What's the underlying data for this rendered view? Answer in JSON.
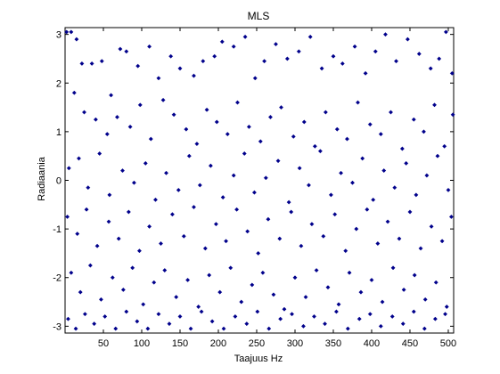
{
  "chart_data": {
    "type": "scatter",
    "title": "MLS",
    "xlabel": "Taajuus Hz",
    "ylabel": "Radiaania",
    "xlim": [
      0,
      507
    ],
    "ylim": [
      -3.14,
      3.14
    ],
    "xticks": [
      50,
      100,
      150,
      200,
      250,
      300,
      350,
      400,
      450,
      500
    ],
    "xtick_labels": [
      "50",
      "100",
      "150",
      "200",
      "250",
      "300",
      "350",
      "400",
      "450",
      "500"
    ],
    "yticks": [
      -3,
      -2,
      -1,
      0,
      1,
      2,
      3
    ],
    "ytick_labels": [
      "-3",
      "-2",
      "-1",
      "0",
      "1",
      "2",
      "3"
    ],
    "grid": false,
    "legend": "none",
    "marker": "filled-diamond",
    "series": [
      {
        "color": "#00008B",
        "points": [
          [
            2,
            3.05
          ],
          [
            8,
            3.05
          ],
          [
            15,
            2.9
          ],
          [
            22,
            2.4
          ],
          [
            35,
            2.4
          ],
          [
            48,
            2.45
          ],
          [
            60,
            1.75
          ],
          [
            72,
            2.7
          ],
          [
            80,
            2.65
          ],
          [
            95,
            2.35
          ],
          [
            110,
            2.75
          ],
          [
            122,
            2.1
          ],
          [
            138,
            2.55
          ],
          [
            150,
            2.3
          ],
          [
            168,
            2.15
          ],
          [
            180,
            2.45
          ],
          [
            195,
            2.55
          ],
          [
            205,
            2.85
          ],
          [
            220,
            2.75
          ],
          [
            235,
            2.95
          ],
          [
            248,
            2.1
          ],
          [
            260,
            2.45
          ],
          [
            275,
            2.8
          ],
          [
            290,
            2.5
          ],
          [
            305,
            2.65
          ],
          [
            320,
            2.95
          ],
          [
            335,
            2.3
          ],
          [
            350,
            2.55
          ],
          [
            362,
            2.4
          ],
          [
            378,
            2.75
          ],
          [
            392,
            2.2
          ],
          [
            405,
            2.65
          ],
          [
            418,
            3.0
          ],
          [
            432,
            2.45
          ],
          [
            447,
            2.9
          ],
          [
            462,
            2.6
          ],
          [
            477,
            2.3
          ],
          [
            488,
            2.5
          ],
          [
            497,
            3.05
          ],
          [
            505,
            2.2
          ],
          [
            12,
            1.8
          ],
          [
            25,
            1.4
          ],
          [
            40,
            1.25
          ],
          [
            55,
            0.95
          ],
          [
            68,
            1.3
          ],
          [
            85,
            1.1
          ],
          [
            98,
            1.55
          ],
          [
            112,
            0.85
          ],
          [
            128,
            1.65
          ],
          [
            142,
            1.35
          ],
          [
            158,
            1.05
          ],
          [
            172,
            0.75
          ],
          [
            185,
            1.45
          ],
          [
            198,
            1.2
          ],
          [
            212,
            0.95
          ],
          [
            225,
            1.6
          ],
          [
            240,
            1.1
          ],
          [
            255,
            0.8
          ],
          [
            268,
            1.3
          ],
          [
            282,
            1.5
          ],
          [
            298,
            0.9
          ],
          [
            312,
            1.2
          ],
          [
            326,
            0.7
          ],
          [
            340,
            1.4
          ],
          [
            355,
            1.05
          ],
          [
            368,
            0.85
          ],
          [
            382,
            1.6
          ],
          [
            398,
            1.15
          ],
          [
            412,
            0.95
          ],
          [
            425,
            1.4
          ],
          [
            440,
            0.65
          ],
          [
            455,
            1.25
          ],
          [
            468,
            1.0
          ],
          [
            482,
            1.55
          ],
          [
            495,
            0.7
          ],
          [
            506,
            1.35
          ],
          [
            5,
            0.25
          ],
          [
            18,
            0.45
          ],
          [
            30,
            -0.15
          ],
          [
            45,
            0.55
          ],
          [
            58,
            -0.3
          ],
          [
            75,
            0.2
          ],
          [
            90,
            -0.05
          ],
          [
            105,
            0.35
          ],
          [
            118,
            -0.4
          ],
          [
            132,
            0.15
          ],
          [
            148,
            -0.2
          ],
          [
            162,
            0.5
          ],
          [
            176,
            -0.1
          ],
          [
            190,
            0.3
          ],
          [
            206,
            -0.35
          ],
          [
            220,
            0.1
          ],
          [
            234,
            0.55
          ],
          [
            247,
            -0.25
          ],
          [
            262,
            0.05
          ],
          [
            278,
            0.4
          ],
          [
            292,
            -0.45
          ],
          [
            306,
            0.25
          ],
          [
            318,
            -0.1
          ],
          [
            333,
            0.6
          ],
          [
            347,
            -0.3
          ],
          [
            360,
            0.15
          ],
          [
            375,
            -0.05
          ],
          [
            388,
            0.45
          ],
          [
            402,
            -0.4
          ],
          [
            416,
            0.2
          ],
          [
            430,
            -0.15
          ],
          [
            445,
            0.35
          ],
          [
            458,
            -0.3
          ],
          [
            472,
            0.1
          ],
          [
            486,
            0.5
          ],
          [
            500,
            -0.2
          ],
          [
            3,
            -0.75
          ],
          [
            16,
            -1.1
          ],
          [
            28,
            -0.6
          ],
          [
            42,
            -1.35
          ],
          [
            57,
            -0.85
          ],
          [
            70,
            -1.2
          ],
          [
            83,
            -0.65
          ],
          [
            97,
            -1.45
          ],
          [
            110,
            -0.95
          ],
          [
            125,
            -1.3
          ],
          [
            140,
            -0.7
          ],
          [
            155,
            -1.15
          ],
          [
            168,
            -0.55
          ],
          [
            183,
            -1.4
          ],
          [
            197,
            -0.9
          ],
          [
            210,
            -1.25
          ],
          [
            224,
            -0.6
          ],
          [
            238,
            -1.05
          ],
          [
            252,
            -1.5
          ],
          [
            265,
            -0.8
          ],
          [
            280,
            -1.2
          ],
          [
            295,
            -0.65
          ],
          [
            308,
            -1.35
          ],
          [
            322,
            -0.9
          ],
          [
            337,
            -1.15
          ],
          [
            352,
            -0.7
          ],
          [
            366,
            -1.45
          ],
          [
            380,
            -1.0
          ],
          [
            394,
            -0.6
          ],
          [
            408,
            -1.3
          ],
          [
            421,
            -0.85
          ],
          [
            436,
            -1.2
          ],
          [
            450,
            -0.65
          ],
          [
            464,
            -1.4
          ],
          [
            478,
            -0.95
          ],
          [
            492,
            -1.25
          ],
          [
            504,
            -0.75
          ],
          [
            8,
            -1.9
          ],
          [
            20,
            -2.3
          ],
          [
            33,
            -1.75
          ],
          [
            47,
            -2.45
          ],
          [
            62,
            -2.0
          ],
          [
            76,
            -2.25
          ],
          [
            88,
            -1.8
          ],
          [
            102,
            -2.55
          ],
          [
            116,
            -2.1
          ],
          [
            130,
            -1.85
          ],
          [
            145,
            -2.4
          ],
          [
            160,
            -2.05
          ],
          [
            174,
            -2.6
          ],
          [
            188,
            -1.95
          ],
          [
            202,
            -2.3
          ],
          [
            216,
            -1.8
          ],
          [
            230,
            -2.5
          ],
          [
            244,
            -2.15
          ],
          [
            258,
            -1.9
          ],
          [
            272,
            -2.35
          ],
          [
            286,
            -2.65
          ],
          [
            300,
            -2.0
          ],
          [
            314,
            -2.4
          ],
          [
            328,
            -1.85
          ],
          [
            343,
            -2.2
          ],
          [
            357,
            -2.55
          ],
          [
            371,
            -1.9
          ],
          [
            386,
            -2.3
          ],
          [
            400,
            -2.05
          ],
          [
            414,
            -2.5
          ],
          [
            428,
            -1.8
          ],
          [
            442,
            -2.25
          ],
          [
            456,
            -1.95
          ],
          [
            470,
            -2.45
          ],
          [
            484,
            -2.1
          ],
          [
            498,
            -2.6
          ],
          [
            4,
            -2.85
          ],
          [
            14,
            -3.05
          ],
          [
            26,
            -2.75
          ],
          [
            38,
            -2.95
          ],
          [
            52,
            -2.8
          ],
          [
            66,
            -3.05
          ],
          [
            80,
            -2.7
          ],
          [
            94,
            -2.9
          ],
          [
            108,
            -3.05
          ],
          [
            122,
            -2.75
          ],
          [
            136,
            -2.95
          ],
          [
            150,
            -2.8
          ],
          [
            164,
            -3.05
          ],
          [
            178,
            -2.7
          ],
          [
            192,
            -2.9
          ],
          [
            207,
            -3.05
          ],
          [
            222,
            -2.8
          ],
          [
            237,
            -2.95
          ],
          [
            251,
            -2.7
          ],
          [
            266,
            -3.05
          ],
          [
            281,
            -2.85
          ],
          [
            296,
            -2.75
          ],
          [
            311,
            -3.0
          ],
          [
            325,
            -2.8
          ],
          [
            339,
            -2.95
          ],
          [
            354,
            -2.7
          ],
          [
            369,
            -3.05
          ],
          [
            384,
            -2.85
          ],
          [
            398,
            -2.75
          ],
          [
            412,
            -3.0
          ],
          [
            427,
            -2.8
          ],
          [
            441,
            -2.95
          ],
          [
            455,
            -2.7
          ],
          [
            469,
            -3.05
          ],
          [
            483,
            -2.85
          ],
          [
            496,
            -2.75
          ]
        ]
      }
    ]
  }
}
